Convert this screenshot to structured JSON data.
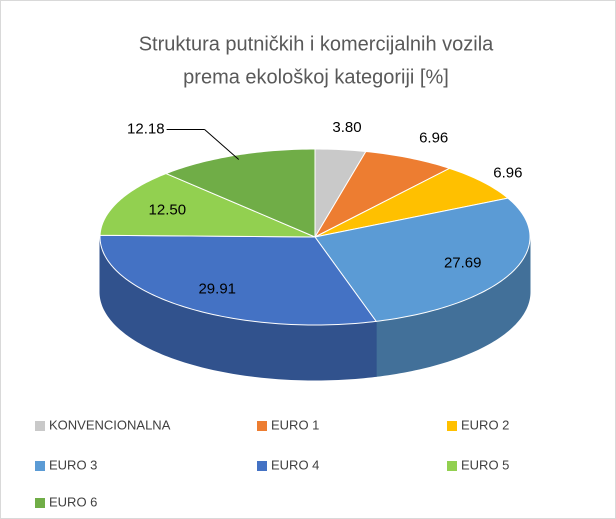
{
  "chart_data": {
    "type": "pie3d",
    "title": [
      "Struktura putničkih i komercijalnih vozila",
      "prema ekološkoj kategoriji [%]"
    ],
    "categories": [
      "KONVENCIONALNA",
      "EURO 1",
      "EURO 2",
      "EURO 3",
      "EURO 4",
      "EURO 5",
      "EURO 6"
    ],
    "values": [
      3.8,
      6.96,
      6.96,
      27.69,
      29.91,
      12.5,
      12.18
    ],
    "value_labels": [
      "3.80",
      "6.96",
      "6.96",
      "27.69",
      "29.91",
      "12.50",
      "12.18"
    ],
    "colors": [
      "#c9c9c9",
      "#ed7d31",
      "#ffc000",
      "#5b9bd5",
      "#4472c4",
      "#92d050",
      "#70ad47"
    ],
    "legend": "bottom"
  }
}
